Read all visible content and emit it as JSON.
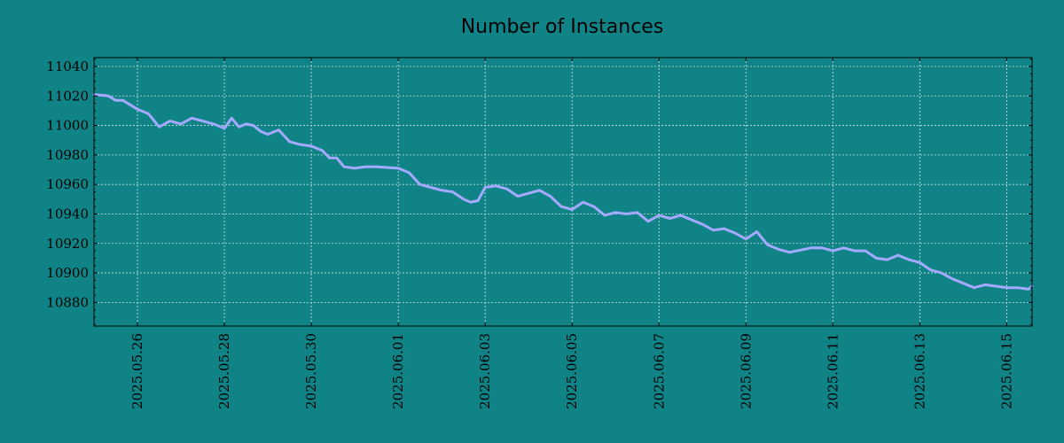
{
  "chart_data": {
    "type": "line",
    "title": "Number of Instances",
    "xlabel": "",
    "ylabel": "",
    "ylim": [
      10864,
      11046
    ],
    "y_ticks": [
      10880,
      10900,
      10920,
      10940,
      10960,
      10980,
      11000,
      11020,
      11040
    ],
    "x_ticks": [
      "2025.05.26",
      "2025.05.28",
      "2025.05.30",
      "2025.06.01",
      "2025.06.03",
      "2025.06.05",
      "2025.06.07",
      "2025.06.09",
      "2025.06.11",
      "2025.06.13",
      "2025.06.15"
    ],
    "xlim": [
      "2025.05.25 00:00",
      "2025.06.15 14:00"
    ],
    "grid": true,
    "colors": {
      "background": "#108386",
      "line": "#a4aaff",
      "grid": "#cfe3e3",
      "axis": "#000000"
    },
    "series": [
      {
        "x": [
          "2025.05.25 00:00",
          "2025.05.25 08:00",
          "2025.05.25 12:00",
          "2025.05.25 16:00",
          "2025.05.26 00:00",
          "2025.05.26 06:00",
          "2025.05.26 12:00",
          "2025.05.26 18:00",
          "2025.05.27 00:00",
          "2025.05.27 06:00",
          "2025.05.27 12:00",
          "2025.05.27 18:00",
          "2025.05.28 00:00",
          "2025.05.28 04:00",
          "2025.05.28 08:00",
          "2025.05.28 12:00",
          "2025.05.28 16:00",
          "2025.05.28 20:00",
          "2025.05.29 00:00",
          "2025.05.29 06:00",
          "2025.05.29 12:00",
          "2025.05.29 18:00",
          "2025.05.30 00:00",
          "2025.05.30 06:00",
          "2025.05.30 10:00",
          "2025.05.30 14:00",
          "2025.05.30 18:00",
          "2025.05.31 00:00",
          "2025.05.31 06:00",
          "2025.05.31 12:00",
          "2025.06.01 00:00",
          "2025.06.01 06:00",
          "2025.06.01 12:00",
          "2025.06.01 18:00",
          "2025.06.02 00:00",
          "2025.06.02 06:00",
          "2025.06.02 12:00",
          "2025.06.02 16:00",
          "2025.06.02 20:00",
          "2025.06.03 00:00",
          "2025.06.03 06:00",
          "2025.06.03 12:00",
          "2025.06.03 18:00",
          "2025.06.04 00:00",
          "2025.06.04 06:00",
          "2025.06.04 12:00",
          "2025.06.04 18:00",
          "2025.06.05 00:00",
          "2025.06.05 06:00",
          "2025.06.05 12:00",
          "2025.06.05 18:00",
          "2025.06.06 00:00",
          "2025.06.06 06:00",
          "2025.06.06 12:00",
          "2025.06.06 18:00",
          "2025.06.07 00:00",
          "2025.06.07 06:00",
          "2025.06.07 12:00",
          "2025.06.07 18:00",
          "2025.06.08 00:00",
          "2025.06.08 06:00",
          "2025.06.08 12:00",
          "2025.06.08 18:00",
          "2025.06.09 00:00",
          "2025.06.09 06:00",
          "2025.06.09 12:00",
          "2025.06.09 18:00",
          "2025.06.10 00:00",
          "2025.06.10 12:00",
          "2025.06.10 18:00",
          "2025.06.11 00:00",
          "2025.06.11 06:00",
          "2025.06.11 12:00",
          "2025.06.11 18:00",
          "2025.06.12 00:00",
          "2025.06.12 06:00",
          "2025.06.12 12:00",
          "2025.06.12 18:00",
          "2025.06.13 00:00",
          "2025.06.13 06:00",
          "2025.06.13 12:00",
          "2025.06.13 18:00",
          "2025.06.14 00:00",
          "2025.06.14 06:00",
          "2025.06.14 12:00",
          "2025.06.14 18:00",
          "2025.06.15 00:00",
          "2025.06.15 06:00",
          "2025.06.15 12:00",
          "2025.06.15 14:00"
        ],
        "values": [
          11021,
          11020,
          11017,
          11017,
          11011,
          11008,
          10999,
          11003,
          11001,
          11005,
          11003,
          11001,
          10998,
          11005,
          10999,
          11001,
          11000,
          10996,
          10994,
          10997,
          10989,
          10987,
          10986,
          10983,
          10978,
          10978,
          10972,
          10971,
          10972,
          10972,
          10971,
          10968,
          10960,
          10958,
          10956,
          10955,
          10950,
          10948,
          10949,
          10958,
          10959,
          10957,
          10952,
          10954,
          10956,
          10952,
          10945,
          10943,
          10948,
          10945,
          10939,
          10941,
          10940,
          10941,
          10935,
          10939,
          10937,
          10939,
          10936,
          10933,
          10929,
          10930,
          10927,
          10923,
          10928,
          10919,
          10916,
          10914,
          10917,
          10917,
          10915,
          10917,
          10915,
          10915,
          10910,
          10909,
          10912,
          10909,
          10907,
          10902,
          10900,
          10896,
          10893,
          10890,
          10892,
          10891,
          10890,
          10890,
          10889,
          10891
        ]
      }
    ]
  }
}
